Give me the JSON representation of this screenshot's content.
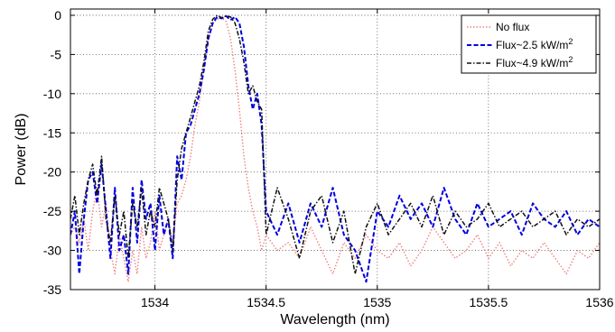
{
  "chart_data": {
    "type": "line",
    "title": "",
    "xlabel": "Wavelength (nm)",
    "ylabel": "Power (dB)",
    "xlim": [
      1533.62,
      1536
    ],
    "ylim": [
      -35,
      0.8
    ],
    "xticks": [
      1534,
      1534.5,
      1535,
      1535.5,
      1536
    ],
    "xtick_labels": [
      "1534",
      "1534.5",
      "1535",
      "1535.5",
      "1536"
    ],
    "yticks": [
      0,
      -5,
      -10,
      -15,
      -20,
      -25,
      -30,
      -35
    ],
    "ytick_labels": [
      "0",
      "-5",
      "-10",
      "-15",
      "-20",
      "-25",
      "-30",
      "-35"
    ],
    "grid": true,
    "legend_position": "top-right",
    "legend": {
      "no_flux": "No flux",
      "flux1_prefix": "Flux~2.5 kW/m",
      "flux1_sup": "2",
      "flux2_prefix": "Flux~4.9 kW/m",
      "flux2_sup": "2"
    },
    "series": [
      {
        "name": "No flux",
        "color": "#f08080",
        "dash": "1.5,2",
        "x": [
          1533.62,
          1533.64,
          1533.66,
          1533.68,
          1533.7,
          1533.72,
          1533.74,
          1533.76,
          1533.78,
          1533.8,
          1533.82,
          1533.84,
          1533.86,
          1533.88,
          1533.9,
          1533.92,
          1533.94,
          1533.96,
          1533.98,
          1534.0,
          1534.02,
          1534.04,
          1534.06,
          1534.08,
          1534.1,
          1534.12,
          1534.14,
          1534.16,
          1534.18,
          1534.2,
          1534.22,
          1534.24,
          1534.26,
          1534.28,
          1534.3,
          1534.32,
          1534.34,
          1534.36,
          1534.38,
          1534.4,
          1534.42,
          1534.44,
          1534.46,
          1534.48,
          1534.5,
          1534.55,
          1534.6,
          1534.65,
          1534.7,
          1534.75,
          1534.8,
          1534.85,
          1534.9,
          1534.95,
          1535.0,
          1535.05,
          1535.1,
          1535.15,
          1535.2,
          1535.25,
          1535.3,
          1535.35,
          1535.4,
          1535.45,
          1535.5,
          1535.55,
          1535.6,
          1535.65,
          1535.7,
          1535.75,
          1535.8,
          1535.85,
          1535.9,
          1535.95,
          1536.0
        ],
        "y": [
          -28,
          -27,
          -29,
          -26,
          -30,
          -25,
          -22,
          -27,
          -24,
          -30,
          -33,
          -28,
          -31,
          -34,
          -30,
          -33,
          -27,
          -31,
          -29,
          -25,
          -30,
          -28,
          -26,
          -29,
          -24,
          -23,
          -21,
          -18,
          -14,
          -11,
          -7,
          -3,
          -1,
          -0.5,
          -0.3,
          -0.8,
          -3,
          -7,
          -12,
          -18,
          -22,
          -25,
          -27,
          -30,
          -28,
          -30,
          -29,
          -31,
          -27,
          -30,
          -33,
          -29,
          -31,
          -28,
          -30,
          -31,
          -29,
          -32,
          -30,
          -27,
          -29,
          -31,
          -30,
          -28,
          -31,
          -29,
          -32,
          -30,
          -31,
          -29,
          -31,
          -33,
          -30,
          -31,
          -29
        ]
      },
      {
        "name": "Flux~2.5 kW/m2",
        "color": "#0000e0",
        "dash": "5,2.5",
        "x": [
          1533.62,
          1533.64,
          1533.66,
          1533.68,
          1533.7,
          1533.72,
          1533.74,
          1533.76,
          1533.78,
          1533.8,
          1533.82,
          1533.84,
          1533.86,
          1533.88,
          1533.9,
          1533.92,
          1533.94,
          1533.96,
          1533.98,
          1534.0,
          1534.02,
          1534.04,
          1534.06,
          1534.08,
          1534.1,
          1534.12,
          1534.14,
          1534.16,
          1534.18,
          1534.2,
          1534.22,
          1534.24,
          1534.26,
          1534.28,
          1534.3,
          1534.32,
          1534.34,
          1534.36,
          1534.38,
          1534.4,
          1534.42,
          1534.44,
          1534.46,
          1534.48,
          1534.5,
          1534.55,
          1534.6,
          1534.65,
          1534.7,
          1534.75,
          1534.8,
          1534.85,
          1534.9,
          1534.95,
          1535.0,
          1535.05,
          1535.1,
          1535.15,
          1535.2,
          1535.25,
          1535.3,
          1535.35,
          1535.4,
          1535.45,
          1535.5,
          1535.55,
          1535.6,
          1535.65,
          1535.7,
          1535.75,
          1535.8,
          1535.85,
          1535.9,
          1535.95,
          1536.0
        ],
        "y": [
          -28,
          -25,
          -33,
          -26,
          -21,
          -20,
          -24,
          -19,
          -25,
          -31,
          -22,
          -30,
          -28,
          -33,
          -22,
          -29,
          -21,
          -26,
          -24,
          -30,
          -23,
          -28,
          -26,
          -31,
          -18,
          -21,
          -15,
          -14,
          -12,
          -10,
          -7,
          -3,
          -1,
          -0.2,
          -0.4,
          -0.1,
          -0.6,
          -0.2,
          -1,
          -4,
          -9,
          -12,
          -10,
          -14,
          -25,
          -28,
          -24,
          -29,
          -24,
          -27,
          -22,
          -28,
          -30,
          -34,
          -25,
          -27,
          -23,
          -26,
          -24,
          -27,
          -22,
          -26,
          -28,
          -24,
          -27,
          -26,
          -25,
          -28,
          -24,
          -26,
          -27,
          -25,
          -28,
          -26,
          -27
        ]
      },
      {
        "name": "Flux~4.9 kW/m2",
        "color": "#111111",
        "dash": "5,2,1.5,2",
        "x": [
          1533.62,
          1533.64,
          1533.66,
          1533.68,
          1533.7,
          1533.72,
          1533.74,
          1533.76,
          1533.78,
          1533.8,
          1533.82,
          1533.84,
          1533.86,
          1533.88,
          1533.9,
          1533.92,
          1533.94,
          1533.96,
          1533.98,
          1534.0,
          1534.02,
          1534.04,
          1534.06,
          1534.08,
          1534.1,
          1534.12,
          1534.14,
          1534.16,
          1534.18,
          1534.2,
          1534.22,
          1534.24,
          1534.26,
          1534.28,
          1534.3,
          1534.32,
          1534.34,
          1534.36,
          1534.38,
          1534.4,
          1534.42,
          1534.44,
          1534.46,
          1534.48,
          1534.5,
          1534.55,
          1534.6,
          1534.65,
          1534.7,
          1534.75,
          1534.8,
          1534.85,
          1534.9,
          1534.95,
          1535.0,
          1535.05,
          1535.1,
          1535.15,
          1535.2,
          1535.25,
          1535.3,
          1535.35,
          1535.4,
          1535.45,
          1535.5,
          1535.55,
          1535.6,
          1535.65,
          1535.7,
          1535.75,
          1535.8,
          1535.85,
          1535.9,
          1535.95,
          1536.0
        ],
        "y": [
          -26,
          -23,
          -28,
          -24,
          -21,
          -19,
          -23,
          -18,
          -26,
          -29,
          -23,
          -28,
          -25,
          -31,
          -24,
          -27,
          -22,
          -28,
          -25,
          -27,
          -22,
          -24,
          -26,
          -30,
          -21,
          -17,
          -15,
          -13,
          -11,
          -9,
          -6,
          -2,
          -0.5,
          0,
          -0.3,
          -0.1,
          -0.2,
          -1,
          -3,
          -6,
          -10,
          -9,
          -11,
          -12,
          -28,
          -22,
          -26,
          -31,
          -25,
          -23,
          -29,
          -25,
          -33,
          -27,
          -24,
          -28,
          -26,
          -24,
          -27,
          -23,
          -28,
          -25,
          -27,
          -26,
          -24,
          -27,
          -26,
          -25,
          -27,
          -26,
          -25,
          -28,
          -26,
          -27,
          -26
        ]
      }
    ]
  }
}
